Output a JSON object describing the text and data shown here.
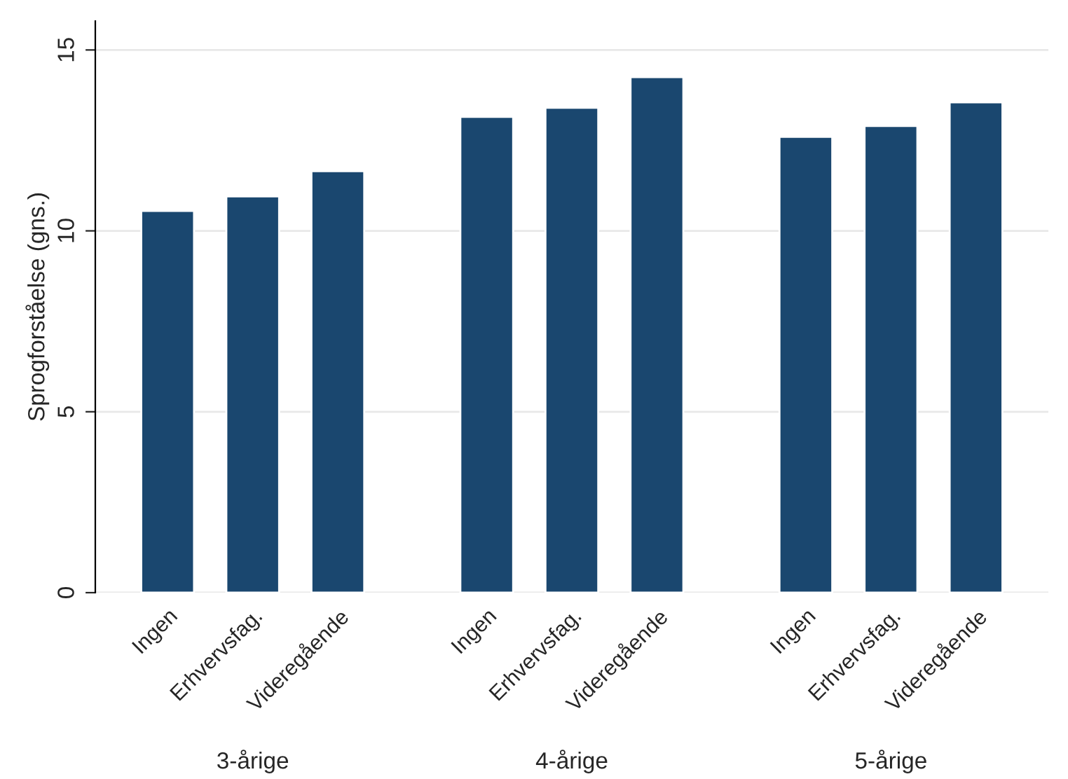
{
  "chart_data": {
    "type": "bar",
    "ylabel": "Sprogforståelse (gns.)",
    "categories": [
      "Ingen",
      "Erhvervsfag.",
      "Videregående",
      "Ingen",
      "Erhvervsfag.",
      "Videregående",
      "Ingen",
      "Erhvervsfag.",
      "Videregående"
    ],
    "values": [
      10.55,
      10.95,
      11.65,
      13.15,
      13.4,
      14.25,
      12.6,
      12.9,
      13.55
    ],
    "color": "#1a476f",
    "annotations": [
      "3-årige",
      "4-årige",
      "5-årige"
    ],
    "ylim": [
      0,
      15.8
    ],
    "yticks": [
      0,
      5,
      10,
      15
    ],
    "grid": "y",
    "legend": false
  }
}
